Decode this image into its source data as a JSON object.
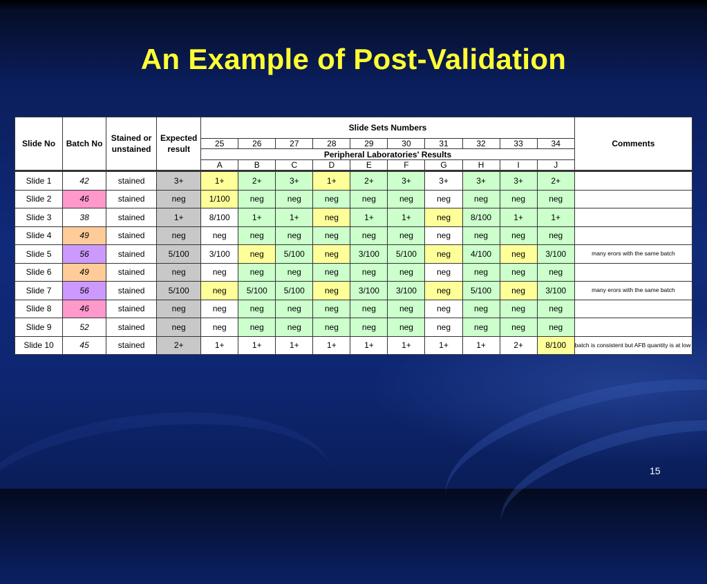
{
  "slide": {
    "title": "An Example of Post-Validation",
    "page_number": "15"
  },
  "headers": {
    "slide_no": "Slide No",
    "batch_no": "Batch No",
    "stained_or_unstained": "Stained or unstained",
    "expected_result": "Expected result",
    "slide_sets_numbers": "Slide Sets Numbers",
    "comments": "Comments",
    "set_numbers": [
      "25",
      "26",
      "27",
      "28",
      "29",
      "30",
      "31",
      "32",
      "33",
      "34"
    ],
    "peripheral_results": "Peripheral Laboratories' Results",
    "labs": [
      "A",
      "B",
      "C",
      "D",
      "E",
      "F",
      "G",
      "H",
      "I",
      "J"
    ]
  },
  "colors": {
    "title": "#ffff33",
    "pink": "#ff99cc",
    "orange": "#ffcc99",
    "violet": "#cc99ff",
    "yellow": "#ffff99",
    "green": "#ccffcc",
    "gray": "#c8c8c8"
  },
  "rows": [
    {
      "slide": "Slide 1",
      "batch": "42",
      "batch_color": "white",
      "stain": "stained",
      "expected": "3+",
      "results": [
        "1+",
        "2+",
        "3+",
        "1+",
        "2+",
        "3+",
        "3+",
        "3+",
        "3+",
        "2+"
      ],
      "result_colors": [
        "yellow",
        "green",
        "green",
        "yellow",
        "green",
        "green",
        "white",
        "green",
        "green",
        "green"
      ],
      "comment": ""
    },
    {
      "slide": "Slide 2",
      "batch": "46",
      "batch_color": "pink",
      "stain": "stained",
      "expected": "neg",
      "results": [
        "1/100",
        "neg",
        "neg",
        "neg",
        "neg",
        "neg",
        "neg",
        "neg",
        "neg",
        "neg"
      ],
      "result_colors": [
        "yellow",
        "green",
        "green",
        "green",
        "green",
        "green",
        "white",
        "green",
        "green",
        "green"
      ],
      "comment": ""
    },
    {
      "slide": "Slide 3",
      "batch": "38",
      "batch_color": "white",
      "stain": "stained",
      "expected": "1+",
      "results": [
        "8/100",
        "1+",
        "1+",
        "neg",
        "1+",
        "1+",
        "neg",
        "8/100",
        "1+",
        "1+"
      ],
      "result_colors": [
        "white",
        "green",
        "green",
        "yellow",
        "green",
        "green",
        "yellow",
        "green",
        "green",
        "green"
      ],
      "comment": ""
    },
    {
      "slide": "Slide 4",
      "batch": "49",
      "batch_color": "orange",
      "stain": "stained",
      "expected": "neg",
      "results": [
        "neg",
        "neg",
        "neg",
        "neg",
        "neg",
        "neg",
        "neg",
        "neg",
        "neg",
        "neg"
      ],
      "result_colors": [
        "white",
        "green",
        "green",
        "green",
        "green",
        "green",
        "white",
        "green",
        "green",
        "green"
      ],
      "comment": ""
    },
    {
      "slide": "Slide 5",
      "batch": "56",
      "batch_color": "violet",
      "stain": "stained",
      "expected": "5/100",
      "results": [
        "3/100",
        "neg",
        "5/100",
        "neg",
        "3/100",
        "5/100",
        "neg",
        "4/100",
        "neg",
        "3/100"
      ],
      "result_colors": [
        "white",
        "yellow",
        "green",
        "yellow",
        "green",
        "green",
        "yellow",
        "green",
        "yellow",
        "green"
      ],
      "comment": "many erors with the same batch"
    },
    {
      "slide": "Slide 6",
      "batch": "49",
      "batch_color": "orange",
      "stain": "stained",
      "expected": "neg",
      "results": [
        "neg",
        "neg",
        "neg",
        "neg",
        "neg",
        "neg",
        "neg",
        "neg",
        "neg",
        "neg"
      ],
      "result_colors": [
        "white",
        "green",
        "green",
        "green",
        "green",
        "green",
        "white",
        "green",
        "green",
        "green"
      ],
      "comment": ""
    },
    {
      "slide": "Slide 7",
      "batch": "56",
      "batch_color": "violet",
      "stain": "stained",
      "expected": "5/100",
      "results": [
        "neg",
        "5/100",
        "5/100",
        "neg",
        "3/100",
        "3/100",
        "neg",
        "5/100",
        "neg",
        "3/100"
      ],
      "result_colors": [
        "yellow",
        "green",
        "green",
        "yellow",
        "green",
        "green",
        "yellow",
        "green",
        "yellow",
        "green"
      ],
      "comment": " many erors with the same batch"
    },
    {
      "slide": "Slide 8",
      "batch": "46",
      "batch_color": "pink",
      "stain": "stained",
      "expected": "neg",
      "results": [
        "neg",
        "neg",
        "neg",
        "neg",
        "neg",
        "neg",
        "neg",
        "neg",
        "neg",
        "neg"
      ],
      "result_colors": [
        "white",
        "green",
        "green",
        "green",
        "green",
        "green",
        "white",
        "green",
        "green",
        "green"
      ],
      "comment": ""
    },
    {
      "slide": "Slide 9",
      "batch": "52",
      "batch_color": "white",
      "stain": "stained",
      "expected": "neg",
      "results": [
        "neg",
        "neg",
        "neg",
        "neg",
        "neg",
        "neg",
        "neg",
        "neg",
        "neg",
        "neg"
      ],
      "result_colors": [
        "white",
        "green",
        "green",
        "green",
        "green",
        "green",
        "white",
        "green",
        "green",
        "green"
      ],
      "comment": ""
    },
    {
      "slide": "Slide 10",
      "batch": "45",
      "batch_color": "white",
      "stain": "stained",
      "expected": "2+",
      "results": [
        "1+",
        "1+",
        "1+",
        "1+",
        "1+",
        "1+",
        "1+",
        "1+",
        "2+",
        "8/100"
      ],
      "result_colors": [
        "white",
        "white",
        "white",
        "white",
        "white",
        "white",
        "white",
        "white",
        "white",
        "yellow"
      ],
      "comment": "batch is consistent but AFB quantity is at low acceptable limit"
    }
  ]
}
